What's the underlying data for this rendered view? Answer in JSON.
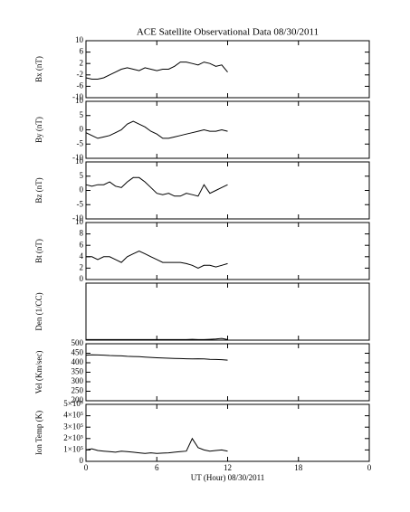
{
  "chart_data": [
    {
      "type": "line",
      "title": "ACE Satellite Observational Data   08/30/2011",
      "ylabel": "Bx (nT)",
      "ylim": [
        -10,
        10
      ],
      "yticks": [
        10,
        6,
        2,
        -2,
        -6,
        -10
      ],
      "xlim": [
        0,
        24
      ],
      "x": [
        0,
        0.5,
        1,
        1.5,
        2,
        2.5,
        3,
        3.5,
        4,
        4.5,
        5,
        5.5,
        6,
        6.5,
        7,
        7.5,
        8,
        8.5,
        9,
        9.5,
        10,
        10.5,
        11,
        11.5,
        12
      ],
      "values": [
        -3,
        -3.5,
        -3.5,
        -3,
        -2,
        -1,
        0,
        0.5,
        0,
        -0.5,
        0.5,
        0,
        -0.5,
        0,
        0,
        1,
        2.5,
        2.5,
        2,
        1.5,
        2.5,
        2,
        1,
        1.5,
        -1
      ]
    },
    {
      "type": "line",
      "ylabel": "By (nT)",
      "ylim": [
        -10,
        10
      ],
      "yticks": [
        10,
        5,
        0,
        -5,
        -10
      ],
      "xlim": [
        0,
        24
      ],
      "x": [
        0,
        0.5,
        1,
        1.5,
        2,
        2.5,
        3,
        3.5,
        4,
        4.5,
        5,
        5.5,
        6,
        6.5,
        7,
        7.5,
        8,
        8.5,
        9,
        9.5,
        10,
        10.5,
        11,
        11.5,
        12
      ],
      "values": [
        -1,
        -2,
        -3,
        -2.5,
        -2,
        -1,
        0,
        2,
        3,
        2,
        1,
        -0.5,
        -1.5,
        -3,
        -3,
        -2.5,
        -2,
        -1.5,
        -1,
        -0.5,
        0,
        -0.5,
        -0.5,
        0,
        -0.5
      ]
    },
    {
      "type": "line",
      "ylabel": "Bz (nT)",
      "ylim": [
        -10,
        10
      ],
      "yticks": [
        10,
        5,
        0,
        -5,
        -10
      ],
      "xlim": [
        0,
        24
      ],
      "x": [
        0,
        0.5,
        1,
        1.5,
        2,
        2.5,
        3,
        3.5,
        4,
        4.5,
        5,
        5.5,
        6,
        6.5,
        7,
        7.5,
        8,
        8.5,
        9,
        9.5,
        10,
        10.5,
        11,
        11.5,
        12
      ],
      "values": [
        2,
        1.5,
        2,
        2,
        3,
        1.5,
        1,
        3,
        4.5,
        4.5,
        3,
        1,
        -1,
        -1.5,
        -1,
        -2,
        -2,
        -1,
        -1.5,
        -2,
        2,
        -1,
        0,
        1,
        2
      ]
    },
    {
      "type": "line",
      "ylabel": "Bt (nT)",
      "ylim": [
        0,
        10
      ],
      "yticks": [
        0,
        2,
        4,
        6,
        8,
        10
      ],
      "xlim": [
        0,
        24
      ],
      "x": [
        0,
        0.5,
        1,
        1.5,
        2,
        2.5,
        3,
        3.5,
        4,
        4.5,
        5,
        5.5,
        6,
        6.5,
        7,
        7.5,
        8,
        8.5,
        9,
        9.5,
        10,
        10.5,
        11,
        11.5,
        12
      ],
      "values": [
        4,
        4,
        3.5,
        4,
        4,
        3.5,
        3,
        4,
        4.5,
        5,
        4.5,
        4,
        3.5,
        3,
        3,
        3,
        3,
        2.8,
        2.5,
        2,
        2.5,
        2.5,
        2.2,
        2.5,
        2.8
      ]
    },
    {
      "type": "line",
      "ylabel": "Den (1/CC)",
      "ylim": [
        0,
        100
      ],
      "xlim": [
        0,
        24
      ],
      "x": [
        0,
        0.5,
        1,
        1.5,
        2,
        2.5,
        3,
        3.5,
        4,
        4.5,
        5,
        5.5,
        6,
        6.5,
        7,
        7.5,
        8,
        8.5,
        9,
        9.5,
        10,
        10.5,
        11,
        11.5,
        12
      ],
      "values": [
        1,
        1,
        1,
        1,
        1,
        1,
        1,
        1,
        1,
        1,
        1,
        1,
        1,
        1,
        1,
        1,
        1,
        1,
        1.5,
        1,
        1,
        1.5,
        2,
        3,
        1
      ]
    },
    {
      "type": "line",
      "ylabel": "Vel (Km/sec)",
      "ylim": [
        200,
        500
      ],
      "yticks": [
        500,
        450,
        400,
        350,
        300,
        250,
        200
      ],
      "xlim": [
        0,
        24
      ],
      "x": [
        0,
        0.5,
        1,
        1.5,
        2,
        2.5,
        3,
        3.5,
        4,
        4.5,
        5,
        5.5,
        6,
        6.5,
        7,
        7.5,
        8,
        8.5,
        9,
        9.5,
        10,
        10.5,
        11,
        11.5,
        12
      ],
      "values": [
        440,
        442,
        441,
        440,
        438,
        437,
        436,
        434,
        433,
        432,
        430,
        428,
        426,
        425,
        424,
        423,
        422,
        421,
        420,
        421,
        420,
        418,
        417,
        416,
        414
      ]
    },
    {
      "type": "line",
      "ylabel": "Ion Temp (K)",
      "ylim": [
        0,
        500000
      ],
      "yticks": [
        {
          "value": 500000,
          "label": "5×10⁵"
        },
        {
          "value": 400000,
          "label": "4×10⁵"
        },
        {
          "value": 300000,
          "label": "3×10⁵"
        },
        {
          "value": 200000,
          "label": "2×10⁵"
        },
        {
          "value": 100000,
          "label": "1×10⁵"
        },
        0
      ],
      "xlim": [
        0,
        24
      ],
      "xticks": [
        0,
        6,
        12,
        18,
        {
          "value": 24,
          "label": "0"
        }
      ],
      "xlabel": "UT (Hour)  08/30/2011",
      "x": [
        0,
        0.5,
        1,
        1.5,
        2,
        2.5,
        3,
        3.5,
        4,
        4.5,
        5,
        5.5,
        6,
        6.5,
        7,
        7.5,
        8,
        8.5,
        9,
        9.5,
        10,
        10.5,
        11,
        11.5,
        12
      ],
      "values": [
        100000,
        110000,
        95000,
        90000,
        85000,
        80000,
        90000,
        85000,
        80000,
        75000,
        70000,
        75000,
        70000,
        72000,
        75000,
        80000,
        85000,
        90000,
        200000,
        120000,
        100000,
        90000,
        95000,
        100000,
        90000
      ]
    }
  ]
}
